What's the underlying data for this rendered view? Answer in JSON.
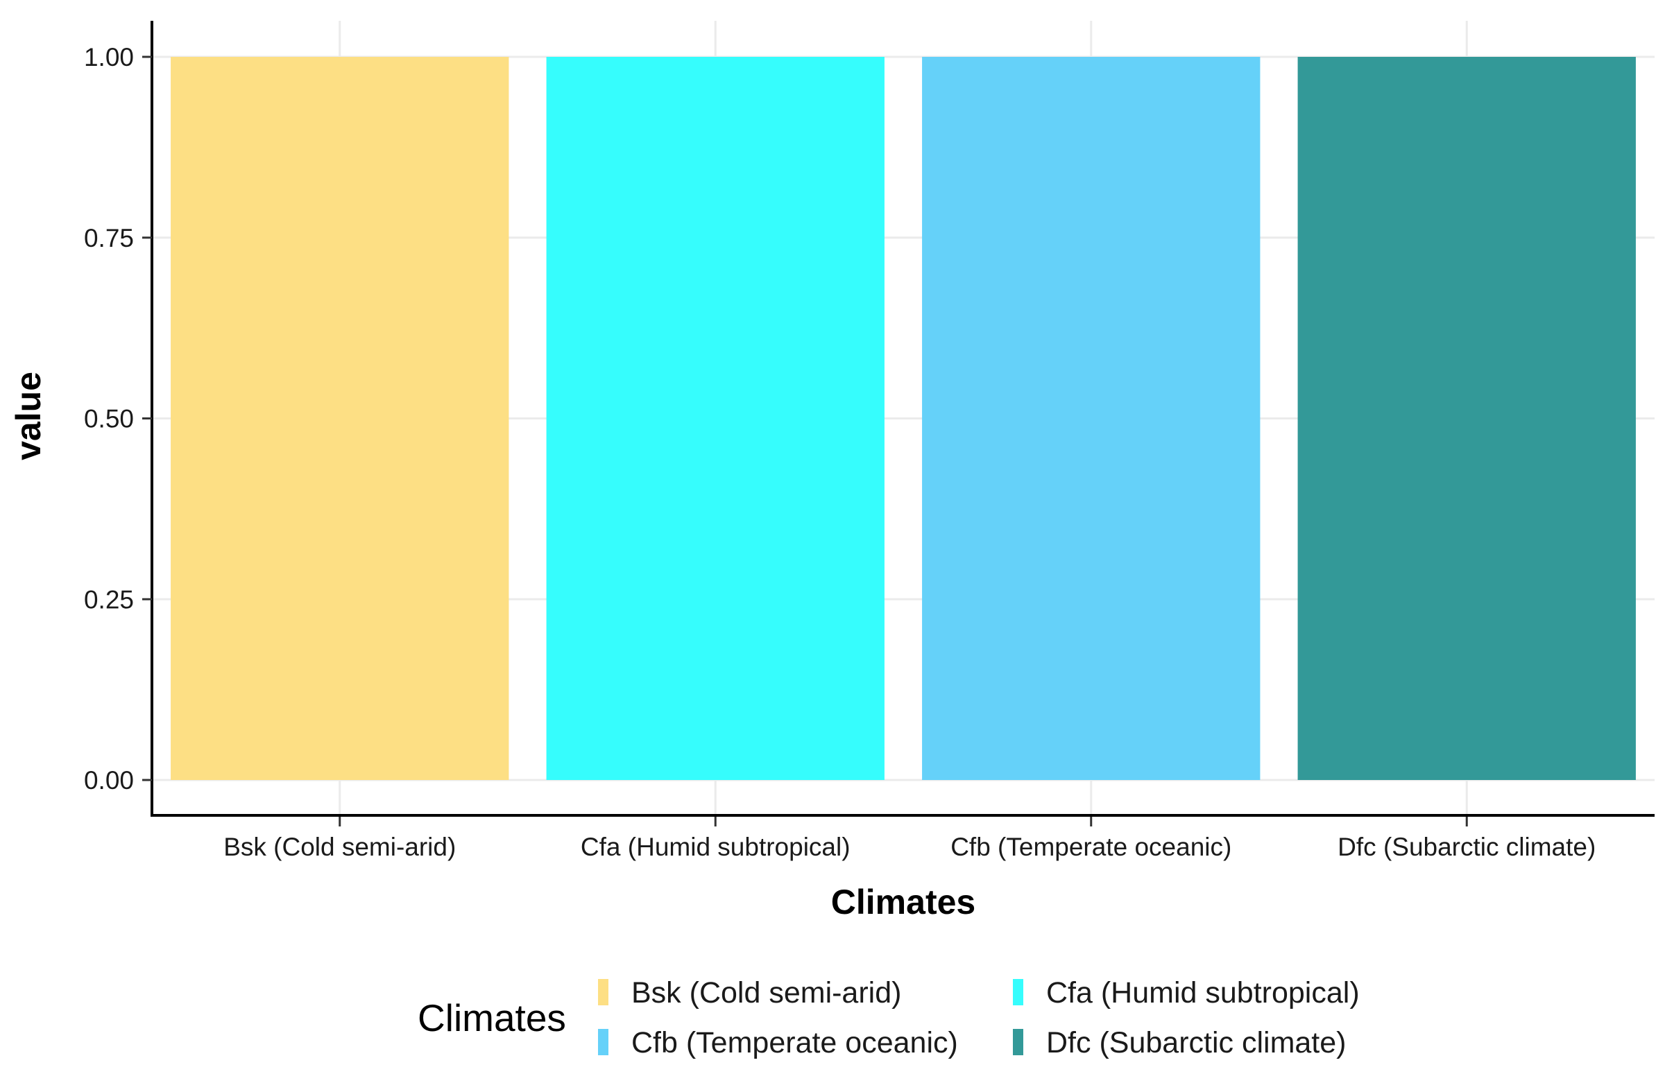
{
  "chart_data": {
    "type": "bar",
    "xlabel": "Climates",
    "ylabel": "value",
    "ylim": [
      0,
      1
    ],
    "yticks": [
      0.0,
      0.25,
      0.5,
      0.75,
      1.0
    ],
    "ytick_labels": [
      "0.00",
      "0.25",
      "0.50",
      "0.75",
      "1.00"
    ],
    "grid": true,
    "categories": [
      "Bsk (Cold semi-arid)",
      "Cfa (Humid subtropical)",
      "Cfb (Temperate oceanic)",
      "Dfc (Subarctic climate)"
    ],
    "values": [
      1.0,
      1.0,
      1.0,
      1.0
    ],
    "colors": [
      "#FDDF84",
      "#36FDFD",
      "#65D1F9",
      "#339998"
    ],
    "legend": {
      "title": "Climates",
      "position": "bottom",
      "entries": [
        "Bsk (Cold semi-arid)",
        "Cfa (Humid subtropical)",
        "Cfb (Temperate oceanic)",
        "Dfc (Subarctic climate)"
      ]
    }
  }
}
